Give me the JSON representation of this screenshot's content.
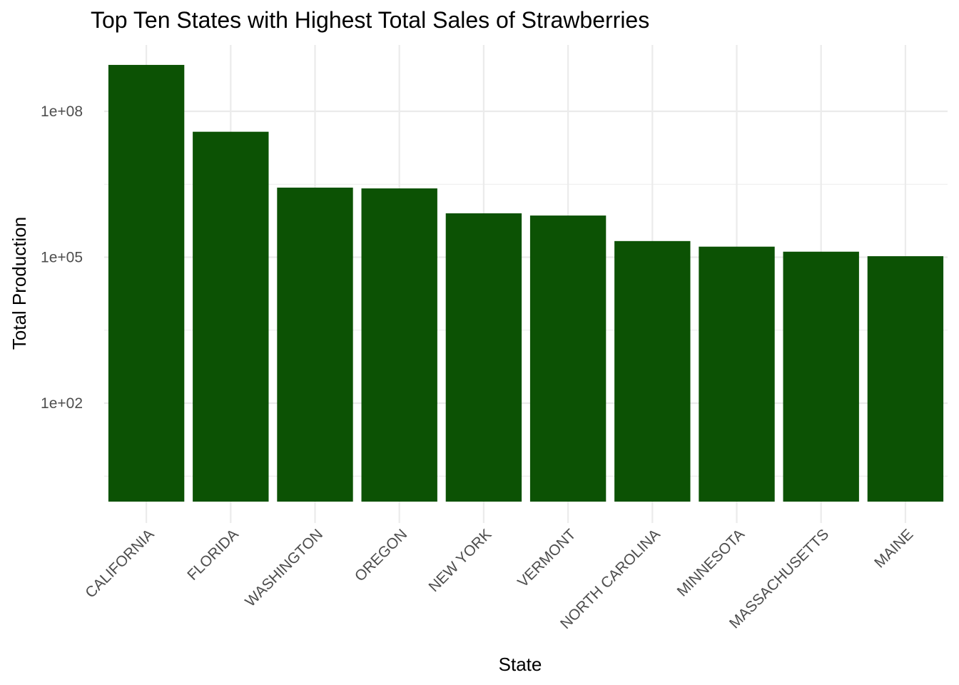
{
  "chart_data": {
    "type": "bar",
    "title": "Top Ten States with Highest Total Sales of Strawberries",
    "xlabel": "State",
    "ylabel": "Total Production",
    "y_scale": "log10",
    "ylim": [
      1,
      1000000000
    ],
    "y_ticks": [
      {
        "value": 100,
        "label": "1e+02"
      },
      {
        "value": 100000,
        "label": "1e+05"
      },
      {
        "value": 100000000,
        "label": "1e+08"
      }
    ],
    "y_minor_ticks": [
      3.16,
      3162,
      3162278
    ],
    "grid": true,
    "bar_color": "#0c5204",
    "categories": [
      "CALIFORNIA",
      "FLORIDA",
      "WASHINGTON",
      "OREGON",
      "NEW YORK",
      "VERMONT",
      "NORTH CAROLINA",
      "MINNESOTA",
      "MASSACHUSETTS",
      "MAINE"
    ],
    "values": [
      900000000,
      38000000,
      2700000,
      2600000,
      800000,
      720000,
      215000,
      165000,
      130000,
      105000
    ]
  }
}
